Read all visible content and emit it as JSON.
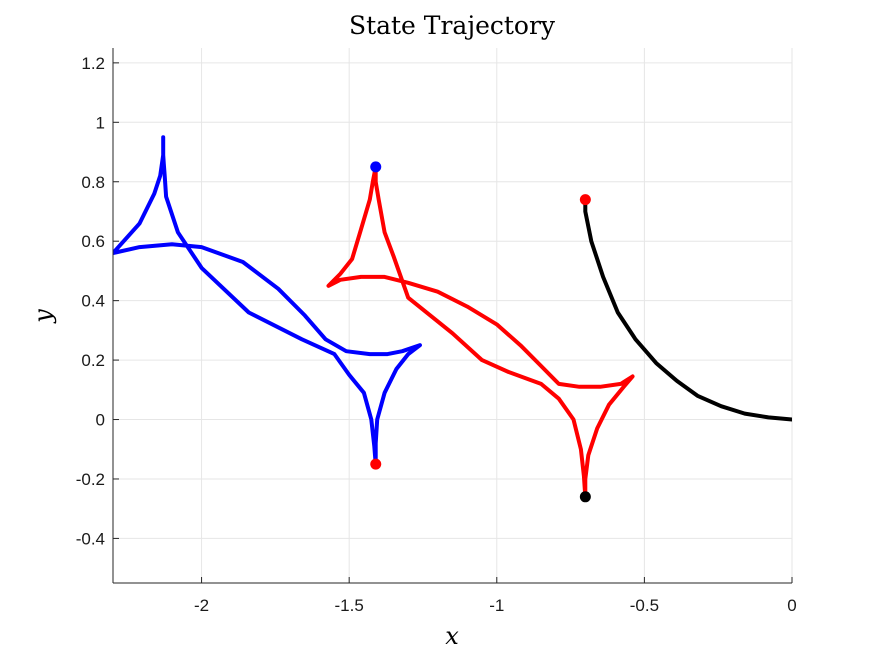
{
  "chart_data": {
    "type": "line",
    "title": "State Trajectory",
    "xlabel": "x",
    "ylabel": "y",
    "xlim": [
      -2.3,
      0
    ],
    "ylim": [
      -0.55,
      1.25
    ],
    "xticks": [
      -2,
      -1.5,
      -1,
      -0.5,
      0
    ],
    "xtick_labels": [
      "-2",
      "-1.5",
      "-1",
      "-0.5",
      "0"
    ],
    "yticks": [
      -0.4,
      -0.2,
      0,
      0.2,
      0.4,
      0.6,
      0.8,
      1,
      1.2
    ],
    "ytick_labels": [
      "-0.4",
      "-0.2",
      "0",
      "0.2",
      "0.4",
      "0.6",
      "0.8",
      "1",
      "1.2"
    ],
    "grid": true,
    "series": [
      {
        "color": "#0000ff",
        "points": [
          [
            -1.41,
            -0.15
          ],
          [
            -1.415,
            -0.09
          ],
          [
            -1.425,
            0.0
          ],
          [
            -1.45,
            0.09
          ],
          [
            -1.5,
            0.15
          ],
          [
            -1.55,
            0.22
          ],
          [
            -1.66,
            0.27
          ],
          [
            -1.84,
            0.36
          ],
          [
            -2.0,
            0.51
          ],
          [
            -2.08,
            0.63
          ],
          [
            -2.12,
            0.75
          ],
          [
            -2.125,
            0.82
          ],
          [
            -2.128,
            0.86
          ],
          [
            -2.13,
            0.89
          ],
          [
            -2.13,
            0.95
          ],
          [
            -2.13,
            0.89
          ],
          [
            -2.14,
            0.82
          ],
          [
            -2.16,
            0.76
          ],
          [
            -2.21,
            0.66
          ],
          [
            -2.3,
            0.56
          ],
          [
            -2.21,
            0.58
          ],
          [
            -2.1,
            0.59
          ],
          [
            -2.0,
            0.58
          ],
          [
            -1.86,
            0.53
          ],
          [
            -1.74,
            0.44
          ],
          [
            -1.65,
            0.35
          ],
          [
            -1.58,
            0.27
          ],
          [
            -1.51,
            0.23
          ],
          [
            -1.43,
            0.22
          ],
          [
            -1.37,
            0.22
          ],
          [
            -1.32,
            0.23
          ],
          [
            -1.26,
            0.25
          ],
          [
            -1.3,
            0.22
          ],
          [
            -1.34,
            0.17
          ],
          [
            -1.38,
            0.09
          ],
          [
            -1.405,
            0.0
          ],
          [
            -1.41,
            -0.08
          ],
          [
            -1.41,
            -0.15
          ]
        ]
      },
      {
        "color": "#ff0000",
        "points": [
          [
            -0.7,
            -0.26
          ],
          [
            -0.705,
            -0.19
          ],
          [
            -0.715,
            -0.1
          ],
          [
            -0.74,
            -0.0
          ],
          [
            -0.79,
            0.07
          ],
          [
            -0.85,
            0.12
          ],
          [
            -0.96,
            0.16
          ],
          [
            -1.05,
            0.2
          ],
          [
            -1.15,
            0.29
          ],
          [
            -1.3,
            0.41
          ],
          [
            -1.35,
            0.55
          ],
          [
            -1.38,
            0.63
          ],
          [
            -1.4,
            0.74
          ],
          [
            -1.41,
            0.8
          ],
          [
            -1.41,
            0.85
          ],
          [
            -1.42,
            0.8
          ],
          [
            -1.43,
            0.74
          ],
          [
            -1.46,
            0.64
          ],
          [
            -1.49,
            0.54
          ],
          [
            -1.53,
            0.49
          ],
          [
            -1.57,
            0.45
          ],
          [
            -1.53,
            0.47
          ],
          [
            -1.46,
            0.48
          ],
          [
            -1.38,
            0.48
          ],
          [
            -1.3,
            0.46
          ],
          [
            -1.2,
            0.43
          ],
          [
            -1.1,
            0.38
          ],
          [
            -1.0,
            0.32
          ],
          [
            -0.92,
            0.25
          ],
          [
            -0.85,
            0.18
          ],
          [
            -0.79,
            0.12
          ],
          [
            -0.72,
            0.11
          ],
          [
            -0.65,
            0.11
          ],
          [
            -0.58,
            0.12
          ],
          [
            -0.54,
            0.145
          ],
          [
            -0.57,
            0.11
          ],
          [
            -0.62,
            0.05
          ],
          [
            -0.66,
            -0.03
          ],
          [
            -0.69,
            -0.12
          ],
          [
            -0.7,
            -0.2
          ],
          [
            -0.7,
            -0.26
          ]
        ]
      },
      {
        "color": "#000000",
        "points": [
          [
            -0.7,
            0.74
          ],
          [
            -0.7,
            0.7
          ],
          [
            -0.68,
            0.6
          ],
          [
            -0.64,
            0.48
          ],
          [
            -0.59,
            0.36
          ],
          [
            -0.53,
            0.27
          ],
          [
            -0.46,
            0.19
          ],
          [
            -0.39,
            0.13
          ],
          [
            -0.32,
            0.08
          ],
          [
            -0.24,
            0.045
          ],
          [
            -0.16,
            0.02
          ],
          [
            -0.08,
            0.007
          ],
          [
            0.0,
            0.0
          ]
        ]
      }
    ],
    "markers": [
      {
        "x": -1.41,
        "y": 0.85,
        "color": "#0000ff"
      },
      {
        "x": -1.41,
        "y": -0.15,
        "color": "#ff0000"
      },
      {
        "x": -0.7,
        "y": 0.74,
        "color": "#ff0000"
      },
      {
        "x": -0.7,
        "y": -0.26,
        "color": "#000000"
      }
    ]
  }
}
